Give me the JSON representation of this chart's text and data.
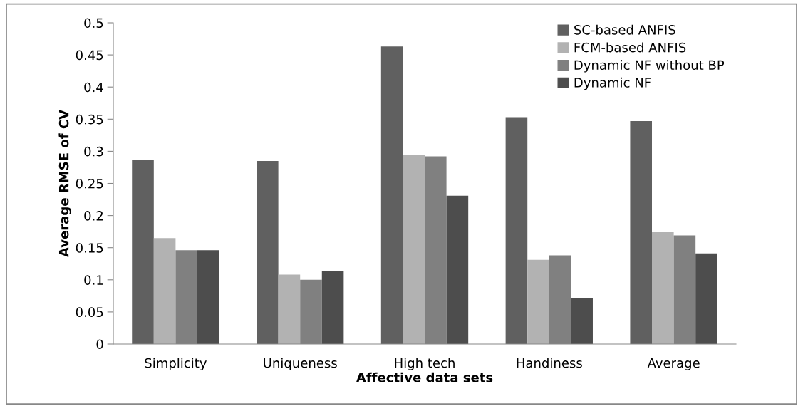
{
  "chart_data": {
    "type": "bar",
    "xlabel": "Affective data sets",
    "ylabel": "Average RMSE of CV",
    "categories": [
      "Simplicity",
      "Uniqueness",
      "High tech",
      "Handiness",
      "Average"
    ],
    "series": [
      {
        "name": "SC-based ANFIS",
        "color": "#606060",
        "values": [
          0.287,
          0.285,
          0.463,
          0.353,
          0.347
        ]
      },
      {
        "name": "FCM-based ANFIS",
        "color": "#b2b2b2",
        "values": [
          0.165,
          0.108,
          0.294,
          0.131,
          0.174
        ]
      },
      {
        "name": "Dynamic NF without BP",
        "color": "#808080",
        "values": [
          0.146,
          0.1,
          0.292,
          0.138,
          0.169
        ]
      },
      {
        "name": "Dynamic NF",
        "color": "#4d4d4d",
        "values": [
          0.146,
          0.113,
          0.231,
          0.072,
          0.141
        ]
      }
    ],
    "ylim": [
      0,
      0.5
    ],
    "yticks": [
      0,
      0.05,
      0.1,
      0.15,
      0.2,
      0.25,
      0.3,
      0.35,
      0.4,
      0.45,
      0.5
    ],
    "grid": false,
    "legend": "top right"
  }
}
